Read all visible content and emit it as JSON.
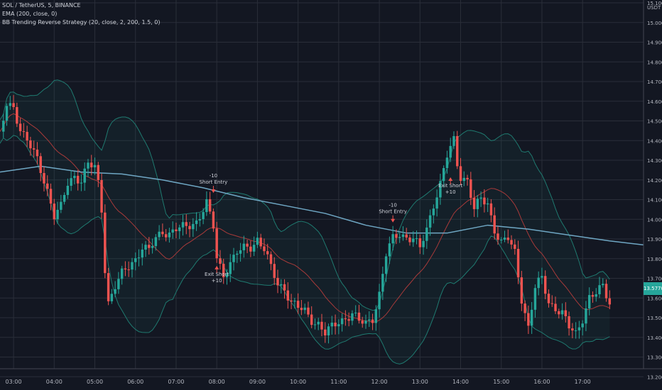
{
  "header": {
    "symbol_line": "SOL / TetherUS, 5, BINANCE",
    "ema_line": "EMA (200, close, 0)",
    "strategy_line": "BB Trending Reverse Strategy (20, close, 2, 200, 1.5, 0)"
  },
  "price_scale_unit": "USDT",
  "last_price_label": "13.5770",
  "colors": {
    "background": "#131722",
    "grid": "#2a2e39",
    "up": "#26a69a",
    "down": "#ef5350",
    "ema": "#6fa7c4",
    "basis": "#a83a3a",
    "bands": "#1f7a70",
    "axis_text": "#b2b5be"
  },
  "chart_data": {
    "type": "candlestick",
    "title": "SOL / TetherUS, 5, BINANCE",
    "x_axis": "time (5-minute bars)",
    "xlim": [
      "02:40",
      "18:30"
    ],
    "ylim": [
      13.1,
      15.2
    ],
    "y_ticks": [
      "15.1000",
      "15.0000",
      "14.9000",
      "14.8000",
      "14.7000",
      "14.6000",
      "14.5000",
      "14.4000",
      "14.3000",
      "14.2000",
      "14.1000",
      "14.0000",
      "13.9000",
      "13.8000",
      "13.7000",
      "13.6000",
      "13.5000",
      "13.4000",
      "13.3000",
      "13.2000"
    ],
    "x_ticks": [
      "03:00",
      "04:00",
      "05:00",
      "06:00",
      "07:00",
      "08:00",
      "09:00",
      "10:00",
      "11:00",
      "12:00",
      "13:00",
      "14:00",
      "15:00",
      "16:00",
      "17:00"
    ],
    "close_path": [
      [
        "02:40",
        14.42
      ],
      [
        "02:50",
        14.58
      ],
      [
        "03:00",
        14.57
      ],
      [
        "03:10",
        14.46
      ],
      [
        "03:20",
        14.4
      ],
      [
        "03:35",
        14.3
      ],
      [
        "03:50",
        14.15
      ],
      [
        "04:00",
        14.02
      ],
      [
        "04:10",
        14.06
      ],
      [
        "04:20",
        14.18
      ],
      [
        "04:30",
        14.22
      ],
      [
        "04:40",
        14.2
      ],
      [
        "04:50",
        14.28
      ],
      [
        "05:00",
        14.26
      ],
      [
        "05:05",
        14.18
      ],
      [
        "05:10",
        14.05
      ],
      [
        "05:15",
        13.75
      ],
      [
        "05:20",
        13.58
      ],
      [
        "05:30",
        13.66
      ],
      [
        "05:40",
        13.72
      ],
      [
        "05:50",
        13.76
      ],
      [
        "06:00",
        13.8
      ],
      [
        "06:10",
        13.86
      ],
      [
        "06:20",
        13.84
      ],
      [
        "06:30",
        13.9
      ],
      [
        "06:40",
        13.94
      ],
      [
        "06:50",
        13.93
      ],
      [
        "07:00",
        13.95
      ],
      [
        "07:15",
        13.96
      ],
      [
        "07:30",
        13.99
      ],
      [
        "07:45",
        14.08
      ],
      [
        "07:55",
        13.96
      ],
      [
        "08:00",
        13.8
      ],
      [
        "08:10",
        13.72
      ],
      [
        "08:20",
        13.78
      ],
      [
        "08:30",
        13.83
      ],
      [
        "08:40",
        13.85
      ],
      [
        "08:50",
        13.86
      ],
      [
        "09:00",
        13.9
      ],
      [
        "09:10",
        13.85
      ],
      [
        "09:20",
        13.75
      ],
      [
        "09:30",
        13.67
      ],
      [
        "09:40",
        13.65
      ],
      [
        "09:50",
        13.58
      ],
      [
        "10:00",
        13.55
      ],
      [
        "10:10",
        13.53
      ],
      [
        "10:20",
        13.49
      ],
      [
        "10:30",
        13.47
      ],
      [
        "10:40",
        13.42
      ],
      [
        "10:50",
        13.45
      ],
      [
        "11:00",
        13.48
      ],
      [
        "11:10",
        13.5
      ],
      [
        "11:20",
        13.52
      ],
      [
        "11:30",
        13.48
      ],
      [
        "11:40",
        13.47
      ],
      [
        "11:50",
        13.5
      ],
      [
        "12:00",
        13.62
      ],
      [
        "12:10",
        13.82
      ],
      [
        "12:20",
        13.9
      ],
      [
        "12:30",
        13.93
      ],
      [
        "12:40",
        13.91
      ],
      [
        "12:50",
        13.9
      ],
      [
        "13:00",
        13.85
      ],
      [
        "13:10",
        13.95
      ],
      [
        "13:20",
        14.08
      ],
      [
        "13:30",
        14.18
      ],
      [
        "13:40",
        14.32
      ],
      [
        "13:50",
        14.4
      ],
      [
        "13:55",
        14.28
      ],
      [
        "14:00",
        14.22
      ],
      [
        "14:10",
        14.2
      ],
      [
        "14:20",
        14.05
      ],
      [
        "14:30",
        14.1
      ],
      [
        "14:40",
        14.08
      ],
      [
        "14:50",
        13.95
      ],
      [
        "15:00",
        13.88
      ],
      [
        "15:10",
        13.9
      ],
      [
        "15:20",
        13.83
      ],
      [
        "15:30",
        13.6
      ],
      [
        "15:40",
        13.45
      ],
      [
        "15:50",
        13.65
      ],
      [
        "16:00",
        13.7
      ],
      [
        "16:10",
        13.58
      ],
      [
        "16:20",
        13.55
      ],
      [
        "16:30",
        13.52
      ],
      [
        "16:40",
        13.45
      ],
      [
        "16:50",
        13.42
      ],
      [
        "17:00",
        13.5
      ],
      [
        "17:10",
        13.6
      ],
      [
        "17:20",
        13.62
      ],
      [
        "17:30",
        13.66
      ],
      [
        "17:40",
        13.58
      ]
    ],
    "ema_200": [
      [
        "02:40",
        14.24
      ],
      [
        "03:40",
        14.27
      ],
      [
        "04:40",
        14.24
      ],
      [
        "05:40",
        14.23
      ],
      [
        "06:40",
        14.2
      ],
      [
        "07:40",
        14.16
      ],
      [
        "08:40",
        14.11
      ],
      [
        "09:40",
        14.07
      ],
      [
        "10:40",
        14.03
      ],
      [
        "11:40",
        13.97
      ],
      [
        "12:40",
        13.93
      ],
      [
        "13:40",
        13.93
      ],
      [
        "14:40",
        13.97
      ],
      [
        "15:40",
        13.95
      ],
      [
        "16:40",
        13.92
      ],
      [
        "17:40",
        13.89
      ],
      [
        "18:30",
        13.87
      ]
    ],
    "signals": [
      {
        "type": "entry",
        "label_top": "-10",
        "label_bottom": "Short Entry",
        "time": "07:55",
        "price": 14.17
      },
      {
        "type": "exit",
        "label_top": "Exit Short",
        "label_bottom": "+10",
        "time": "08:00",
        "price": 13.67
      },
      {
        "type": "entry",
        "label_top": "-10",
        "label_bottom": "Short Entry",
        "time": "12:20",
        "price": 14.02
      },
      {
        "type": "exit",
        "label_top": "Exit Short",
        "label_bottom": "+10",
        "time": "13:45",
        "price": 14.12
      }
    ]
  }
}
